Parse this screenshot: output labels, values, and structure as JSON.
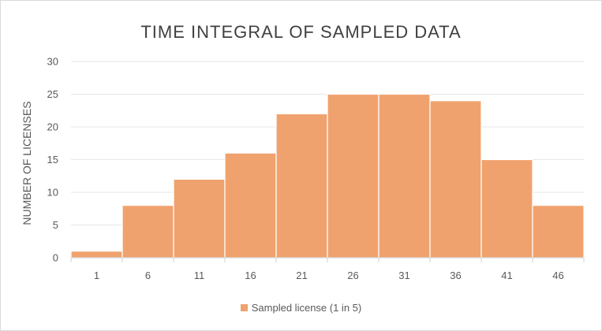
{
  "chart_data": {
    "type": "bar",
    "title": "TIME INTEGRAL OF SAMPLED DATA",
    "xlabel": "",
    "ylabel": "NUMBER OF LICENSES",
    "categories": [
      "1",
      "6",
      "11",
      "16",
      "21",
      "26",
      "31",
      "36",
      "41",
      "46"
    ],
    "series": [
      {
        "name": "Sampled license (1 in 5)",
        "values": [
          1,
          8,
          12,
          16,
          22,
          25,
          25,
          24,
          15,
          8
        ]
      }
    ],
    "ylim": [
      0,
      30
    ],
    "yticks": [
      0,
      5,
      10,
      15,
      20,
      25,
      30
    ],
    "grid": true,
    "legend_position": "bottom",
    "colors": {
      "bar": "#f0a26e",
      "bar_edge": "#ffffff",
      "grid": "#e6e6e6",
      "axis": "#d0d0d0"
    }
  }
}
